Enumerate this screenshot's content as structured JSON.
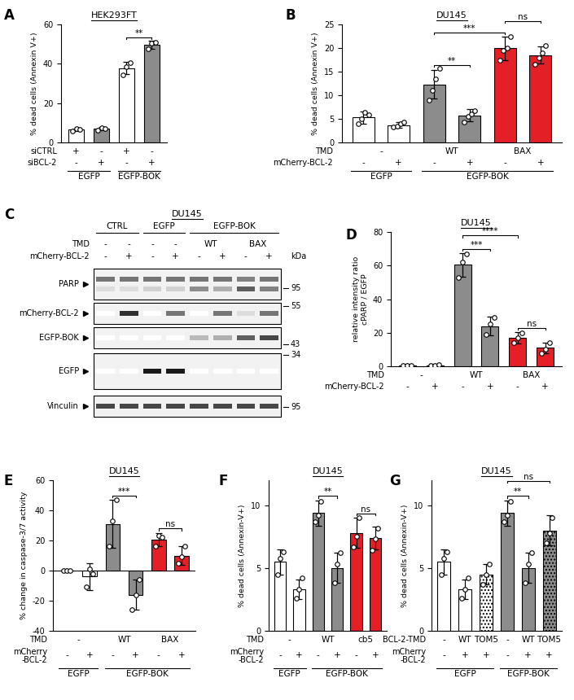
{
  "chart_data": [
    {
      "type": "bar",
      "panel": "A",
      "title": "HEK293FT",
      "y_label": "% dead cells (Annexin V+)",
      "ylim": [
        0,
        60
      ],
      "yticks": [
        0,
        20,
        40,
        60
      ],
      "tick_labels": "y",
      "categories": [
        null,
        null,
        null,
        null
      ],
      "values": [
        6.5,
        7.0,
        37.8,
        49.7
      ],
      "errors": [
        0.5,
        0.7,
        3.0,
        2.0
      ],
      "points": [
        [
          6.0,
          7.0,
          6.5
        ],
        [
          6.3,
          7.6,
          7.2
        ],
        [
          34.5,
          38.5,
          40.5
        ],
        [
          47.5,
          50.5,
          51.0
        ]
      ],
      "colors": [
        "#ffffff",
        "#8c8c8c",
        "#ffffff",
        "#8c8c8c"
      ],
      "condition_rows": [
        {
          "label": "siCTRL",
          "cells": [
            {
              "text": "+",
              "from": 0,
              "to": 0
            },
            {
              "text": "-",
              "from": 1,
              "to": 1
            },
            {
              "text": "+",
              "from": 2,
              "to": 2
            },
            {
              "text": "-",
              "from": 3,
              "to": 3
            }
          ]
        },
        {
          "label": "siBCL-2",
          "cells": [
            {
              "text": "-",
              "from": 0,
              "to": 0
            },
            {
              "text": "+",
              "from": 1,
              "to": 1
            },
            {
              "text": "-",
              "from": 2,
              "to": 2
            },
            {
              "text": "+",
              "from": 3,
              "to": 3
            }
          ]
        }
      ],
      "groups": [
        {
          "label": "EGFP",
          "from": 0,
          "to": 1
        },
        {
          "label": "EGFP-BOK",
          "from": 2,
          "to": 3
        }
      ],
      "significance": [
        {
          "from": 2,
          "to": 3,
          "label": "**"
        }
      ]
    },
    {
      "type": "bar",
      "panel": "B",
      "title": "DU145",
      "y_label": "% dead cells (Annexin V+)",
      "ylim": [
        0,
        25
      ],
      "yticks": [
        0,
        5,
        10,
        15,
        20,
        25
      ],
      "tick_labels": "y",
      "categories": [
        null,
        null,
        null,
        null,
        null,
        null
      ],
      "values": [
        5.3,
        3.7,
        12.3,
        5.7,
        20.0,
        18.5
      ],
      "errors": [
        1.3,
        0.6,
        3.0,
        1.3,
        2.5,
        1.8
      ],
      "points": [
        [
          4.0,
          5.0,
          6.3,
          5.8
        ],
        [
          3.3,
          3.5,
          4.0,
          4.3
        ],
        [
          9.0,
          11.0,
          13.5,
          15.7
        ],
        [
          4.3,
          5.5,
          6.0,
          6.8
        ],
        [
          17.5,
          19.5,
          20.0,
          22.5
        ],
        [
          16.5,
          18.0,
          19.0,
          20.5
        ]
      ],
      "colors": [
        "#ffffff",
        "#ffffff",
        "#8c8c8c",
        "#8c8c8c",
        "#e41f26",
        "#e41f26"
      ],
      "condition_rows": [
        {
          "label": "TMD",
          "cells": [
            {
              "text": "-",
              "from": 0,
              "to": 1
            },
            {
              "text": "WT",
              "from": 2,
              "to": 3
            },
            {
              "text": "BAX",
              "from": 4,
              "to": 5
            }
          ]
        },
        {
          "label": "mCherry-BCL-2",
          "cells": [
            {
              "text": "-",
              "from": 0,
              "to": 0
            },
            {
              "text": "+",
              "from": 1,
              "to": 1
            },
            {
              "text": "-",
              "from": 2,
              "to": 2
            },
            {
              "text": "+",
              "from": 3,
              "to": 3
            },
            {
              "text": "-",
              "from": 4,
              "to": 4
            },
            {
              "text": "+",
              "from": 5,
              "to": 5
            }
          ]
        }
      ],
      "groups": [
        {
          "label": "EGFP",
          "from": 0,
          "to": 1
        },
        {
          "label": "EGFP-BOK",
          "from": 2,
          "to": 5
        }
      ],
      "significance": [
        {
          "from": 2,
          "to": 3,
          "label": "**"
        },
        {
          "from": 2,
          "to": 4,
          "label": "***"
        },
        {
          "from": 4,
          "to": 5,
          "label": "ns"
        }
      ]
    },
    {
      "type": "blot",
      "panel": "C",
      "title": "DU145",
      "unit": "kDa",
      "groups": [
        {
          "label": "CTRL",
          "from": 0,
          "to": 1
        },
        {
          "label": "EGFP",
          "from": 2,
          "to": 3
        },
        {
          "label": "EGFP-BOK",
          "from": 4,
          "to": 7
        }
      ],
      "condition_rows": [
        {
          "label": "TMD",
          "cells": [
            {
              "text": "-",
              "from": 0,
              "to": 0
            },
            {
              "text": "-",
              "from": 1,
              "to": 1
            },
            {
              "text": "-",
              "from": 2,
              "to": 2
            },
            {
              "text": "-",
              "from": 3,
              "to": 3
            },
            {
              "text": "WT",
              "from": 4,
              "to": 5
            },
            {
              "text": "BAX",
              "from": 6,
              "to": 7
            }
          ]
        },
        {
          "label": "mCherry-BCL-2",
          "cells": [
            {
              "text": "-",
              "from": 0,
              "to": 0
            },
            {
              "text": "+",
              "from": 1,
              "to": 1
            },
            {
              "text": "-",
              "from": 2,
              "to": 2
            },
            {
              "text": "+",
              "from": 3,
              "to": 3
            },
            {
              "text": "-",
              "from": 4,
              "to": 4
            },
            {
              "text": "+",
              "from": 5,
              "to": 5
            },
            {
              "text": "-",
              "from": 6,
              "to": 6
            },
            {
              "text": "+",
              "from": 7,
              "to": 7
            }
          ]
        }
      ],
      "blots": [
        {
          "label": "PARP",
          "markers": [
            95
          ],
          "bands": [
            [
              0.6,
              0.6,
              0.6,
              0.6,
              0.6,
              0.6,
              0.55,
              0.6
            ],
            [
              0.15,
              0.15,
              0.2,
              0.2,
              0.5,
              0.35,
              0.7,
              0.55
            ]
          ]
        },
        {
          "label": "mCherry-BCL-2",
          "markers": [
            55
          ],
          "bands": [
            [
              0.0,
              0.9,
              0.0,
              0.6,
              0.0,
              0.6,
              0.15,
              0.6
            ]
          ]
        },
        {
          "label": "EGFP-BOK",
          "markers": [
            43
          ],
          "bands": [
            [
              0.0,
              0.0,
              0.0,
              0.0,
              0.3,
              0.35,
              0.7,
              0.8
            ]
          ]
        },
        {
          "label": "EGFP",
          "markers": [
            34
          ],
          "bands": [
            [
              0.0,
              0.0,
              1.0,
              1.0,
              0.0,
              0.0,
              0.0,
              0.0
            ]
          ]
        },
        {
          "label": "Vinculin",
          "markers": [
            95
          ],
          "bands": [
            [
              0.8,
              0.8,
              0.8,
              0.8,
              0.8,
              0.8,
              0.8,
              0.8
            ]
          ]
        }
      ]
    },
    {
      "type": "bar",
      "panel": "D",
      "title": "DU145",
      "y_label": "relative intensity ratio\ncPARP / EGFP",
      "ylim": [
        0,
        80
      ],
      "yticks": [
        0,
        20,
        40,
        60,
        80
      ],
      "tick_labels": "y",
      "categories": [
        null,
        null,
        null,
        null,
        null,
        null
      ],
      "values": [
        0.5,
        0.5,
        60.5,
        24.0,
        17.0,
        11.0
      ],
      "errors": [
        0.3,
        0.3,
        7.0,
        5.5,
        3.5,
        3.0
      ],
      "points": [
        [
          0.3,
          0.5,
          0.7
        ],
        [
          0.3,
          0.5,
          0.8
        ],
        [
          53,
          62,
          67
        ],
        [
          19,
          25,
          29
        ],
        [
          14,
          17,
          20
        ],
        [
          8,
          10,
          14
        ]
      ],
      "colors": [
        "#ffffff",
        "#ffffff",
        "#8c8c8c",
        "#8c8c8c",
        "#e41f26",
        "#e41f26"
      ],
      "condition_rows": [
        {
          "label": "TMD",
          "cells": [
            {
              "text": "-",
              "from": 0,
              "to": 1
            },
            {
              "text": "WT",
              "from": 2,
              "to": 3
            },
            {
              "text": "BAX",
              "from": 4,
              "to": 5
            }
          ]
        },
        {
          "label": "mCherry-BCL-2",
          "cells": [
            {
              "text": "-",
              "from": 0,
              "to": 0
            },
            {
              "text": "+",
              "from": 1,
              "to": 1
            },
            {
              "text": "-",
              "from": 2,
              "to": 2
            },
            {
              "text": "+",
              "from": 3,
              "to": 3
            },
            {
              "text": "-",
              "from": 4,
              "to": 4
            },
            {
              "text": "+",
              "from": 5,
              "to": 5
            }
          ]
        }
      ],
      "groups": [],
      "significance": [
        {
          "from": 4,
          "to": 5,
          "label": "ns"
        },
        {
          "from": 2,
          "to": 3,
          "label": "***"
        },
        {
          "from": 2,
          "to": 4,
          "label": "****"
        }
      ]
    },
    {
      "type": "bar",
      "panel": "E",
      "title": "DU145",
      "y_label": "% change in caspase-3/7 activity",
      "ylim": [
        -40,
        60
      ],
      "yticks": [
        -40,
        -20,
        0,
        20,
        40,
        60
      ],
      "tick_labels": "y",
      "categories": [
        null,
        null,
        null,
        null,
        null,
        null
      ],
      "values": [
        0.0,
        -4.0,
        31.0,
        -16.0,
        20.5,
        10.0
      ],
      "errors": [
        0.0,
        9.0,
        16.0,
        10.0,
        4.5,
        6.0
      ],
      "points": [
        [
          0,
          0,
          0
        ],
        [
          -11,
          1,
          -2
        ],
        [
          16,
          33,
          47
        ],
        [
          -26,
          -16,
          -6
        ],
        [
          16,
          23,
          22
        ],
        [
          5,
          9,
          16
        ]
      ],
      "colors": [
        "#ffffff",
        "#ffffff",
        "#8c8c8c",
        "#8c8c8c",
        "#e41f26",
        "#e41f26"
      ],
      "condition_rows": [
        {
          "label": "TMD",
          "cells": [
            {
              "text": "-",
              "from": 0,
              "to": 1
            },
            {
              "text": "WT",
              "from": 2,
              "to": 3
            },
            {
              "text": "BAX",
              "from": 4,
              "to": 5
            }
          ]
        },
        {
          "label": "mCherry\n-BCL-2",
          "cells": [
            {
              "text": "-",
              "from": 0,
              "to": 0
            },
            {
              "text": "+",
              "from": 1,
              "to": 1
            },
            {
              "text": "-",
              "from": 2,
              "to": 2
            },
            {
              "text": "+",
              "from": 3,
              "to": 3
            },
            {
              "text": "-",
              "from": 4,
              "to": 4
            },
            {
              "text": "+",
              "from": 5,
              "to": 5
            }
          ]
        }
      ],
      "groups": [
        {
          "label": "EGFP",
          "from": 0,
          "to": 1
        },
        {
          "label": "EGFP-BOK",
          "from": 2,
          "to": 5
        }
      ],
      "significance": [
        {
          "from": 2,
          "to": 3,
          "label": "***"
        },
        {
          "from": 4,
          "to": 5,
          "label": "ns"
        }
      ]
    },
    {
      "type": "bar",
      "panel": "F",
      "title": "DU145",
      "y_label": "% dead cells (Annexin-V+)",
      "ylim": [
        0,
        12
      ],
      "yticks": [
        0,
        5,
        10
      ],
      "tick_labels": "y",
      "categories": [
        null,
        null,
        null,
        null,
        null,
        null
      ],
      "values": [
        5.5,
        3.3,
        9.4,
        5.0,
        7.8,
        7.4
      ],
      "errors": [
        1.0,
        0.8,
        1.0,
        1.2,
        1.2,
        0.9
      ],
      "points": [
        [
          4.5,
          5.8,
          6.3
        ],
        [
          2.6,
          3.3,
          4.2
        ],
        [
          8.7,
          9.2,
          10.3
        ],
        [
          3.8,
          5.3,
          6.2
        ],
        [
          6.7,
          7.5,
          9.0
        ],
        [
          6.4,
          7.3,
          8.2
        ]
      ],
      "colors": [
        "#ffffff",
        "#ffffff",
        "#8c8c8c",
        "#8c8c8c",
        "#e41f26",
        "#e41f26"
      ],
      "condition_rows": [
        {
          "label": "TMD",
          "cells": [
            {
              "text": "-",
              "from": 0,
              "to": 1
            },
            {
              "text": "WT",
              "from": 2,
              "to": 3
            },
            {
              "text": "cb5",
              "from": 4,
              "to": 5
            }
          ]
        },
        {
          "label": "mCherry\n-BCL-2",
          "cells": [
            {
              "text": "-",
              "from": 0,
              "to": 0
            },
            {
              "text": "+",
              "from": 1,
              "to": 1
            },
            {
              "text": "-",
              "from": 2,
              "to": 2
            },
            {
              "text": "+",
              "from": 3,
              "to": 3
            },
            {
              "text": "-",
              "from": 4,
              "to": 4
            },
            {
              "text": "+",
              "from": 5,
              "to": 5
            }
          ]
        }
      ],
      "groups": [
        {
          "label": "EGFP",
          "from": 0,
          "to": 1
        },
        {
          "label": "EGFP-BOK",
          "from": 2,
          "to": 5
        }
      ],
      "significance": [
        {
          "from": 2,
          "to": 3,
          "label": "**"
        },
        {
          "from": 4,
          "to": 5,
          "label": "ns"
        }
      ]
    },
    {
      "type": "bar",
      "panel": "G",
      "title": "DU145",
      "y_label": "% dead cells (Annexin-V+)",
      "ylim": [
        0,
        12
      ],
      "yticks": [
        0,
        5,
        10
      ],
      "tick_labels": "y",
      "categories": [
        null,
        null,
        null,
        null,
        null,
        null
      ],
      "values": [
        5.5,
        3.3,
        4.5,
        9.4,
        5.0,
        8.0
      ],
      "errors": [
        1.0,
        0.8,
        0.8,
        1.0,
        1.2,
        1.2
      ],
      "points": [
        [
          4.5,
          5.8,
          6.3
        ],
        [
          2.6,
          3.3,
          4.2
        ],
        [
          3.7,
          4.5,
          5.3
        ],
        [
          8.7,
          9.2,
          10.3
        ],
        [
          3.8,
          5.3,
          6.2
        ],
        [
          7.0,
          7.8,
          9.0
        ]
      ],
      "colors": [
        "#ffffff",
        "#ffffff",
        "#ffffff",
        "#8c8c8c",
        "#8c8c8c",
        "#8c8c8c"
      ],
      "condition_rows": [
        {
          "label": "BCL-2-TMD",
          "cells": [
            {
              "text": "-",
              "from": 0,
              "to": 0
            },
            {
              "text": "WT",
              "from": 1,
              "to": 1
            },
            {
              "text": "TOM5",
              "from": 2,
              "to": 2
            },
            {
              "text": "-",
              "from": 3,
              "to": 3
            },
            {
              "text": "WT",
              "from": 4,
              "to": 4
            },
            {
              "text": "TOM5",
              "from": 5,
              "to": 5
            }
          ]
        },
        {
          "label": "mCherry\n-BCL-2",
          "cells": [
            {
              "text": "-",
              "from": 0,
              "to": 0
            },
            {
              "text": "+",
              "from": 1,
              "to": 1
            },
            {
              "text": "+",
              "from": 2,
              "to": 2
            },
            {
              "text": "-",
              "from": 3,
              "to": 3
            },
            {
              "text": "+",
              "from": 4,
              "to": 4
            },
            {
              "text": "+",
              "from": 5,
              "to": 5
            }
          ]
        }
      ],
      "groups": [
        {
          "label": "EGFP",
          "from": 0,
          "to": 2
        },
        {
          "label": "EGFP-BOK",
          "from": 3,
          "to": 5
        }
      ],
      "significance": [
        {
          "from": 3,
          "to": 4,
          "label": "**"
        },
        {
          "from": 3,
          "to": 5,
          "label": "ns"
        }
      ]
    }
  ]
}
